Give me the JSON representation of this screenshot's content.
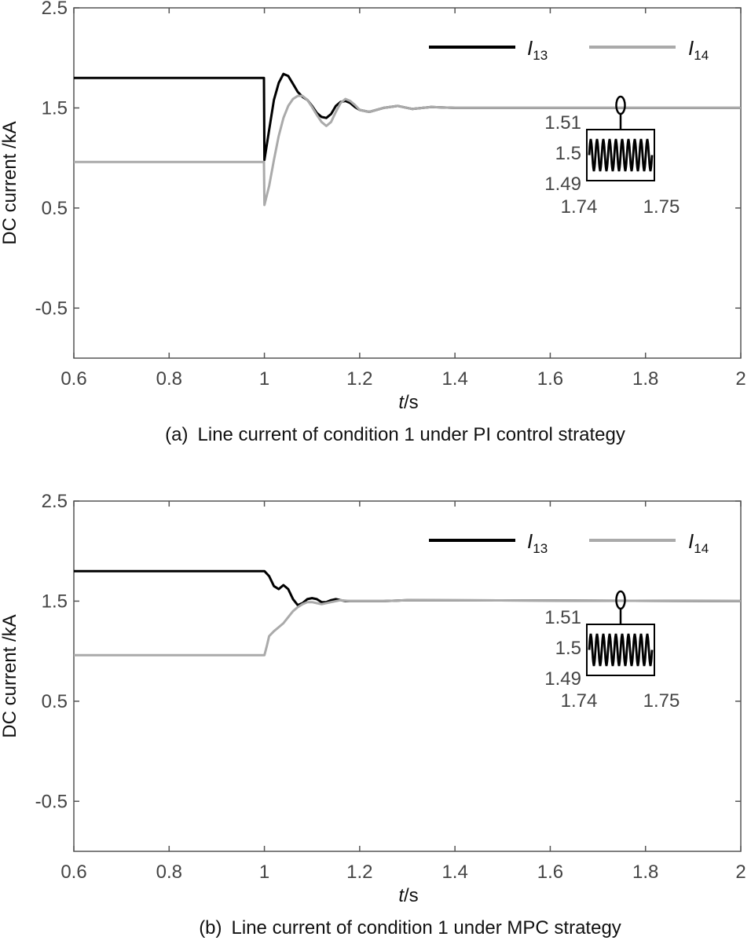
{
  "chart_data": [
    {
      "type": "line",
      "panel_label": "(a)",
      "title": "Line current of condition 1 under PI control strategy",
      "xlabel_italic": "t",
      "xlabel_unit": "/s",
      "ylabel": "DC current /kA",
      "xlim": [
        0.6,
        2.0
      ],
      "ylim": [
        -1.0,
        2.5
      ],
      "xticks": [
        0.6,
        0.8,
        1.0,
        1.2,
        1.4,
        1.6,
        1.8,
        2.0
      ],
      "xtick_labels": [
        "0.6",
        "0.8",
        "1",
        "1.2",
        "1.4",
        "1.6",
        "1.8",
        "2"
      ],
      "yticks": [
        -0.5,
        0.5,
        1.5,
        2.5
      ],
      "ytick_labels": [
        "-0.5",
        "0.5",
        "1.5",
        "2.5"
      ],
      "legend_position": "top-right",
      "series": [
        {
          "name": "I13",
          "label_main": "I",
          "label_sub": "13",
          "color": "#000000",
          "x": [
            0.6,
            0.999,
            1.0,
            1.01,
            1.02,
            1.03,
            1.04,
            1.05,
            1.06,
            1.07,
            1.08,
            1.09,
            1.1,
            1.11,
            1.12,
            1.13,
            1.14,
            1.15,
            1.16,
            1.17,
            1.18,
            1.19,
            1.2,
            1.22,
            1.25,
            1.28,
            1.31,
            1.35,
            1.4,
            2.0
          ],
          "y": [
            1.8,
            1.8,
            0.98,
            1.28,
            1.58,
            1.75,
            1.84,
            1.82,
            1.74,
            1.66,
            1.61,
            1.58,
            1.52,
            1.45,
            1.41,
            1.4,
            1.44,
            1.52,
            1.56,
            1.57,
            1.55,
            1.51,
            1.48,
            1.46,
            1.5,
            1.52,
            1.49,
            1.51,
            1.5,
            1.5
          ]
        },
        {
          "name": "I14",
          "label_main": "I",
          "label_sub": "14",
          "color": "#aaaaaa",
          "x": [
            0.6,
            0.999,
            1.0,
            1.01,
            1.02,
            1.03,
            1.04,
            1.05,
            1.06,
            1.07,
            1.08,
            1.09,
            1.1,
            1.11,
            1.12,
            1.13,
            1.14,
            1.15,
            1.16,
            1.17,
            1.18,
            1.19,
            1.2,
            1.22,
            1.25,
            1.28,
            1.31,
            1.35,
            1.4,
            2.0
          ],
          "y": [
            0.96,
            0.96,
            0.53,
            0.72,
            0.98,
            1.22,
            1.4,
            1.52,
            1.59,
            1.62,
            1.62,
            1.58,
            1.51,
            1.43,
            1.36,
            1.32,
            1.36,
            1.46,
            1.55,
            1.59,
            1.57,
            1.53,
            1.48,
            1.46,
            1.5,
            1.52,
            1.49,
            1.51,
            1.5,
            1.5
          ]
        }
      ],
      "inset": {
        "ytick_labels": [
          "1.51",
          "1.5",
          "1.49"
        ],
        "xtick_labels": [
          "1.74",
          "1.75"
        ],
        "zoom_center": [
          1.755,
          1.5
        ],
        "cycles": 10
      }
    },
    {
      "type": "line",
      "panel_label": "(b)",
      "title": "Line current of condition 1 under MPC strategy",
      "xlabel_italic": "t",
      "xlabel_unit": "/s",
      "ylabel": "DC current /kA",
      "xlim": [
        0.6,
        2.0
      ],
      "ylim": [
        -1.0,
        2.5
      ],
      "xticks": [
        0.6,
        0.8,
        1.0,
        1.2,
        1.4,
        1.6,
        1.8,
        2.0
      ],
      "xtick_labels": [
        "0.6",
        "0.8",
        "1",
        "1.2",
        "1.4",
        "1.6",
        "1.8",
        "2"
      ],
      "yticks": [
        -0.5,
        0.5,
        1.5,
        2.5
      ],
      "ytick_labels": [
        "-0.5",
        "0.5",
        "1.5",
        "2.5"
      ],
      "legend_position": "top-right",
      "series": [
        {
          "name": "I13",
          "label_main": "I",
          "label_sub": "13",
          "color": "#000000",
          "x": [
            0.6,
            1.0,
            1.01,
            1.02,
            1.03,
            1.04,
            1.05,
            1.06,
            1.07,
            1.08,
            1.09,
            1.1,
            1.11,
            1.12,
            1.13,
            1.14,
            1.15,
            1.16,
            1.17,
            1.2,
            1.25,
            1.3,
            2.0
          ],
          "y": [
            1.8,
            1.8,
            1.75,
            1.65,
            1.62,
            1.66,
            1.62,
            1.52,
            1.46,
            1.48,
            1.52,
            1.53,
            1.52,
            1.49,
            1.49,
            1.51,
            1.52,
            1.51,
            1.5,
            1.5,
            1.5,
            1.51,
            1.5
          ]
        },
        {
          "name": "I14",
          "label_main": "I",
          "label_sub": "14",
          "color": "#aaaaaa",
          "x": [
            0.6,
            1.0,
            1.005,
            1.01,
            1.02,
            1.03,
            1.04,
            1.05,
            1.06,
            1.07,
            1.08,
            1.09,
            1.1,
            1.11,
            1.12,
            1.14,
            1.16,
            1.18,
            1.2,
            1.25,
            1.3,
            2.0
          ],
          "y": [
            0.96,
            0.96,
            1.05,
            1.15,
            1.2,
            1.24,
            1.28,
            1.34,
            1.4,
            1.44,
            1.47,
            1.49,
            1.49,
            1.48,
            1.47,
            1.49,
            1.51,
            1.5,
            1.5,
            1.5,
            1.51,
            1.5
          ]
        }
      ],
      "inset": {
        "ytick_labels": [
          "1.51",
          "1.5",
          "1.49"
        ],
        "xtick_labels": [
          "1.74",
          "1.75"
        ],
        "zoom_center": [
          1.755,
          1.5
        ],
        "cycles": 10
      }
    }
  ]
}
